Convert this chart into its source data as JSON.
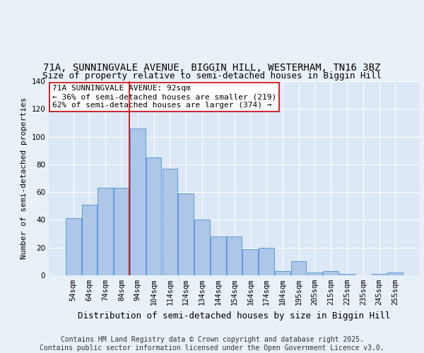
{
  "title1": "71A, SUNNINGVALE AVENUE, BIGGIN HILL, WESTERHAM, TN16 3BZ",
  "title2": "Size of property relative to semi-detached houses in Biggin Hill",
  "xlabel": "Distribution of semi-detached houses by size in Biggin Hill",
  "ylabel": "Number of semi-detached properties",
  "categories": [
    "54sqm",
    "64sqm",
    "74sqm",
    "84sqm",
    "94sqm",
    "104sqm",
    "114sqm",
    "124sqm",
    "134sqm",
    "144sqm",
    "154sqm",
    "164sqm",
    "174sqm",
    "184sqm",
    "195sqm",
    "205sqm",
    "215sqm",
    "225sqm",
    "235sqm",
    "245sqm",
    "255sqm"
  ],
  "values": [
    41,
    51,
    63,
    63,
    106,
    85,
    77,
    59,
    40,
    28,
    28,
    19,
    20,
    3,
    10,
    2,
    3,
    1,
    0,
    1,
    2
  ],
  "bar_color": "#aec6e8",
  "bar_edge_color": "#5b9bd5",
  "bg_color": "#e8f0f8",
  "plot_bg_color": "#dce8f5",
  "grid_color": "#ffffff",
  "vline_x_index": 4,
  "vline_color": "#cc0000",
  "annotation_text": "71A SUNNINGVALE AVENUE: 92sqm\n← 36% of semi-detached houses are smaller (219)\n62% of semi-detached houses are larger (374) →",
  "annotation_box_color": "#ffffff",
  "annotation_box_edge": "#cc0000",
  "ylim": [
    0,
    140
  ],
  "yticks": [
    0,
    20,
    40,
    60,
    80,
    100,
    120,
    140
  ],
  "footnote": "Contains HM Land Registry data © Crown copyright and database right 2025.\nContains public sector information licensed under the Open Government Licence v3.0.",
  "title1_fontsize": 10,
  "title2_fontsize": 9,
  "xlabel_fontsize": 9,
  "ylabel_fontsize": 8,
  "tick_fontsize": 7.5,
  "annotation_fontsize": 8,
  "footnote_fontsize": 7
}
